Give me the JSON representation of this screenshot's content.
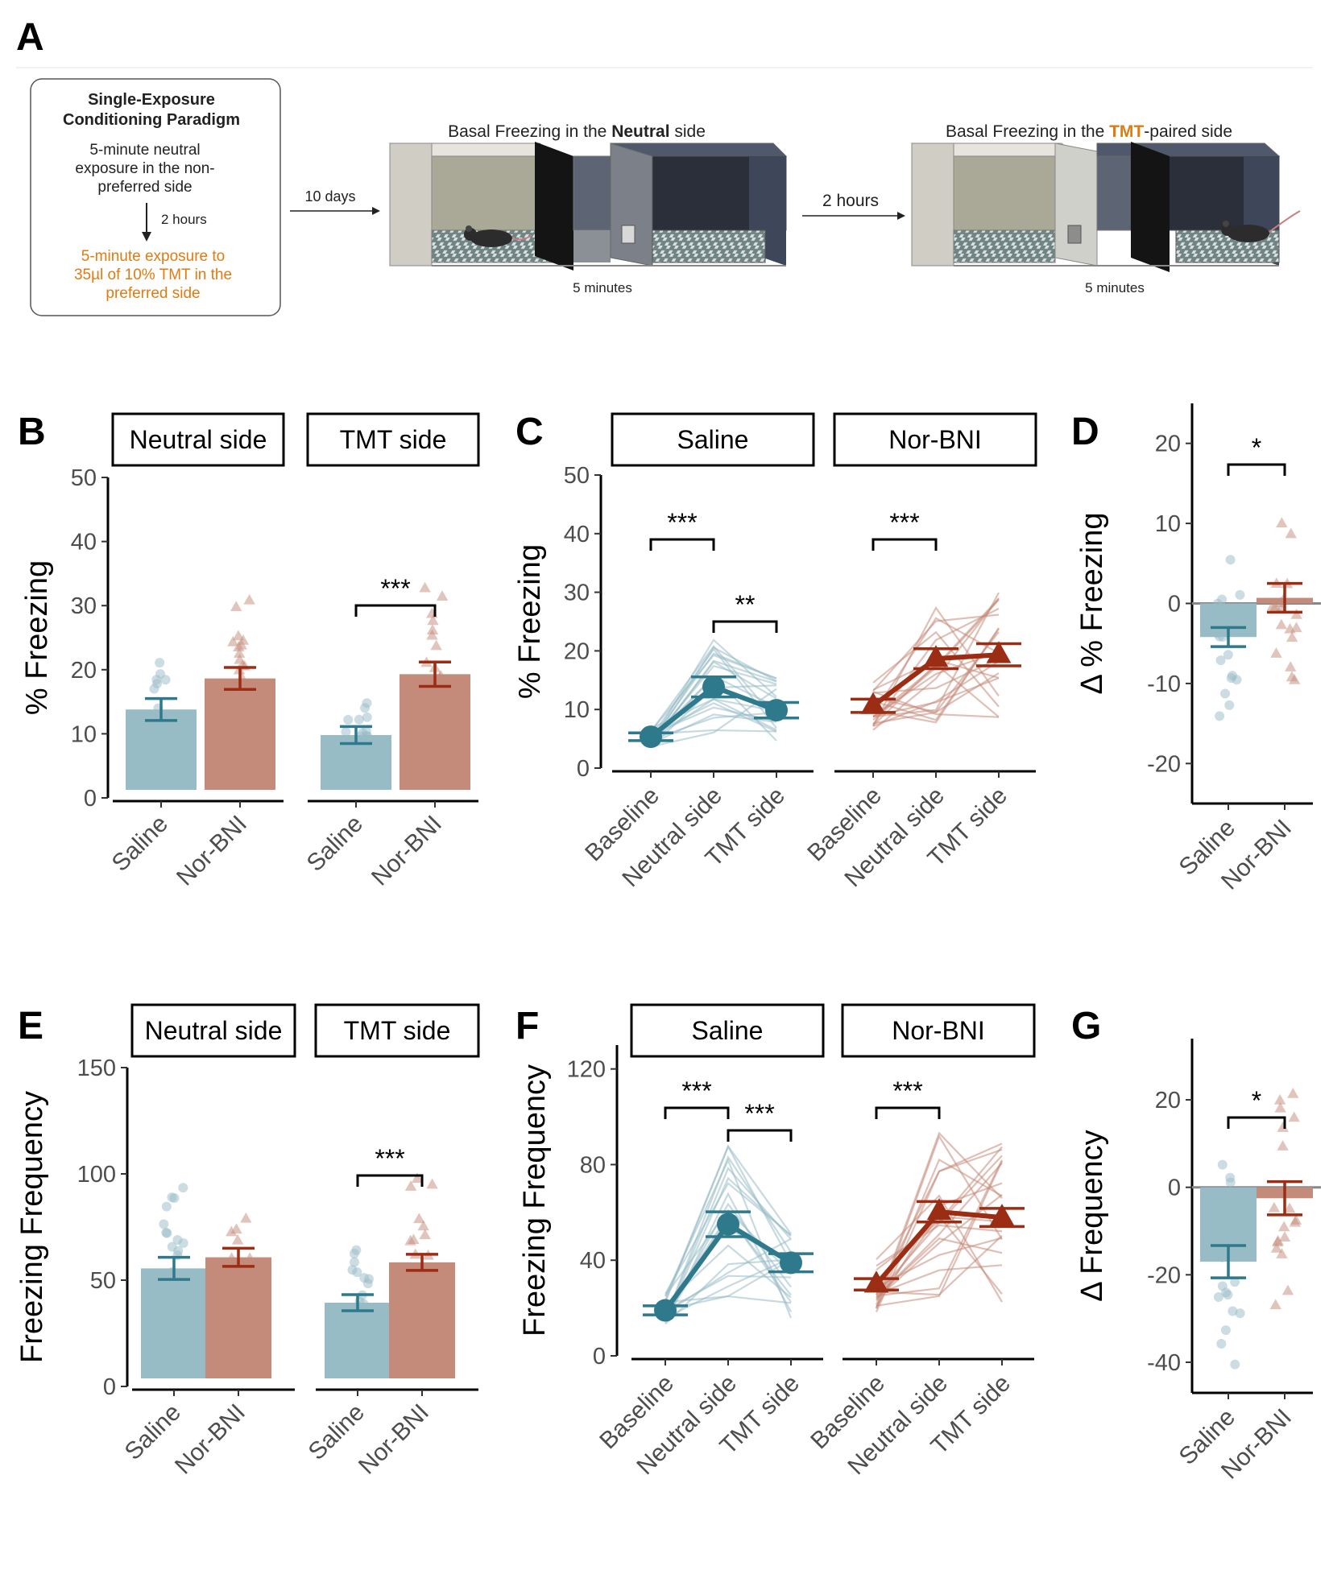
{
  "panel_labels": {
    "a": "A",
    "b": "B",
    "c": "C",
    "d": "D",
    "e": "E",
    "f": "F",
    "g": "G"
  },
  "colors": {
    "saline": "#2e7a8c",
    "norbni": "#9b2d14",
    "saline_light": "#97bcc6",
    "norbni_light": "#c48b7a",
    "tmt_orange": "#e07b12"
  },
  "diagram": {
    "box_title_line1": "Single-Exposure",
    "box_title_line2": "Conditioning Paradigm",
    "box_step1_line1": "5-minute neutral",
    "box_step1_line2": "exposure in the non-",
    "box_step1_line3": "preferred side",
    "box_interval": "2 hours",
    "box_step2_line1": "5-minute exposure to",
    "box_step2_line2": "35µl of 10% TMT in the",
    "box_step2_line3": "preferred side",
    "arrow1_label": "10 days",
    "scene1_title_pre": "Basal Freezing in the ",
    "scene1_title_bold": "Neutral",
    "scene1_title_post": " side",
    "scene1_duration": "5 minutes",
    "arrow2_label": "2 hours",
    "scene2_title_pre": "Basal Freezing in the ",
    "scene2_title_bold": "TMT",
    "scene2_title_post": "-paired side",
    "scene2_duration": "5 minutes"
  },
  "chart_data": [
    {
      "panel": "B",
      "type": "bar",
      "facets": [
        "Neutral side",
        "TMT side"
      ],
      "groups": [
        "Saline",
        "Nor-BNI"
      ],
      "ylabel": "% Freezing",
      "ylim": [
        0,
        50
      ],
      "yticks": [
        "0",
        "10",
        "20",
        "30",
        "40",
        "50"
      ],
      "series": [
        {
          "name": "Saline",
          "values": [
            13.2,
            9.0
          ],
          "se": [
            1.8,
            1.4
          ]
        },
        {
          "name": "Nor-BNI",
          "values": [
            18.3,
            19.0
          ],
          "se": [
            1.8,
            2.0
          ]
        }
      ],
      "significance": [
        {
          "facet": "TMT side",
          "label": "***"
        }
      ]
    },
    {
      "panel": "C",
      "type": "line",
      "facets": [
        "Saline",
        "Nor-BNI"
      ],
      "categories": [
        "Baseline",
        "Neutral side",
        "TMT side"
      ],
      "ylabel": "% Freezing",
      "ylim": [
        0,
        50
      ],
      "yticks": [
        "0",
        "10",
        "20",
        "30",
        "40",
        "50"
      ],
      "series": [
        {
          "name": "Saline",
          "values": [
            4.2,
            13.2,
            9.0
          ],
          "se": [
            0.7,
            1.8,
            1.4
          ]
        },
        {
          "name": "Nor-BNI",
          "values": [
            9.8,
            18.3,
            19.0
          ],
          "se": [
            1.2,
            1.8,
            2.0
          ]
        }
      ],
      "significance": [
        {
          "facet": "Saline",
          "from": "Baseline",
          "to": "Neutral side",
          "label": "***"
        },
        {
          "facet": "Saline",
          "from": "Neutral side",
          "to": "TMT side",
          "label": "**"
        },
        {
          "facet": "Nor-BNI",
          "from": "Baseline",
          "to": "Neutral side",
          "label": "***"
        }
      ]
    },
    {
      "panel": "D",
      "type": "bar",
      "categories": [
        "Saline",
        "Nor-BNI"
      ],
      "ylabel": "Δ % Freezing",
      "ylim": [
        -25,
        25
      ],
      "yticks": [
        "-20",
        "-10",
        "0",
        "10",
        "20"
      ],
      "values": [
        -4.2,
        0.7
      ],
      "se": [
        1.2,
        1.8
      ],
      "significance": [
        {
          "label": "*"
        }
      ]
    },
    {
      "panel": "E",
      "type": "bar",
      "facets": [
        "Neutral side",
        "TMT side"
      ],
      "groups": [
        "Saline",
        "Nor-BNI"
      ],
      "ylabel": "Freezing Frequency",
      "ylim": [
        0,
        150
      ],
      "yticks": [
        "0",
        "50",
        "100",
        "150"
      ],
      "series": [
        {
          "name": "Saline",
          "values": [
            54.5,
            37.5
          ],
          "se": [
            5.5,
            4.0
          ]
        },
        {
          "name": "Nor-BNI",
          "values": [
            60.0,
            57.5
          ],
          "se": [
            4.5,
            4.0
          ]
        }
      ],
      "significance": [
        {
          "facet": "TMT side",
          "label": "***"
        }
      ]
    },
    {
      "panel": "F",
      "type": "line",
      "facets": [
        "Saline",
        "Nor-BNI"
      ],
      "categories": [
        "Baseline",
        "Neutral side",
        "TMT side"
      ],
      "ylabel": "Freezing Frequency",
      "ylim": [
        0,
        130
      ],
      "yticks": [
        "0",
        "40",
        "80",
        "120"
      ],
      "series": [
        {
          "name": "Saline",
          "values": [
            16.5,
            54.5,
            37.5
          ],
          "se": [
            2.0,
            5.5,
            4.0
          ]
        },
        {
          "name": "Nor-BNI",
          "values": [
            28.0,
            60.0,
            57.5
          ],
          "se": [
            2.5,
            4.5,
            4.0
          ]
        }
      ],
      "significance": [
        {
          "facet": "Saline",
          "from": "Baseline",
          "to": "Neutral side",
          "label": "***"
        },
        {
          "facet": "Saline",
          "from": "Neutral side",
          "to": "TMT side",
          "label": "***"
        },
        {
          "facet": "Nor-BNI",
          "from": "Baseline",
          "to": "Neutral side",
          "label": "***"
        }
      ]
    },
    {
      "panel": "G",
      "type": "bar",
      "categories": [
        "Saline",
        "Nor-BNI"
      ],
      "ylabel": "Δ Frequency",
      "ylim": [
        -47,
        34
      ],
      "yticks": [
        "-40",
        "-20",
        "0",
        "20"
      ],
      "values": [
        -17.0,
        -2.5
      ],
      "se": [
        3.7,
        3.8
      ],
      "significance": [
        {
          "label": "*"
        }
      ]
    }
  ]
}
